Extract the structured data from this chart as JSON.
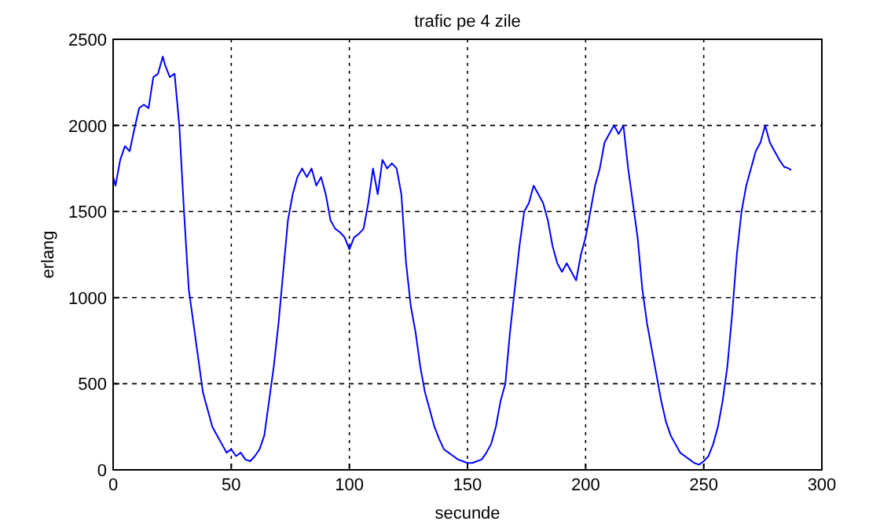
{
  "chart_data": {
    "type": "line",
    "title": "trafic pe 4 zile",
    "xlabel": "secunde",
    "ylabel": "erlang",
    "x": [
      0,
      1,
      3,
      5,
      7,
      9,
      11,
      13,
      15,
      17,
      19,
      21,
      22,
      24,
      26,
      28,
      30,
      32,
      34,
      36,
      38,
      40,
      42,
      44,
      46,
      48,
      50,
      52,
      54,
      56,
      58,
      60,
      62,
      64,
      66,
      68,
      70,
      72,
      74,
      76,
      78,
      80,
      82,
      84,
      86,
      88,
      90,
      92,
      94,
      96,
      98,
      100,
      102,
      104,
      106,
      108,
      110,
      112,
      114,
      116,
      118,
      120,
      122,
      124,
      126,
      128,
      130,
      132,
      134,
      136,
      138,
      140,
      142,
      144,
      146,
      148,
      150,
      152,
      154,
      156,
      158,
      160,
      162,
      164,
      166,
      168,
      170,
      172,
      174,
      176,
      178,
      180,
      182,
      184,
      186,
      188,
      190,
      192,
      194,
      196,
      198,
      200,
      202,
      204,
      206,
      208,
      210,
      212,
      214,
      216,
      218,
      220,
      222,
      224,
      226,
      228,
      230,
      232,
      234,
      236,
      238,
      240,
      242,
      244,
      246,
      248,
      250,
      252,
      254,
      256,
      258,
      260,
      262,
      264,
      266,
      268,
      270,
      272,
      274,
      276,
      278,
      280,
      282,
      284,
      286,
      287
    ],
    "series": [
      {
        "color": "#0000ff",
        "values": [
          1700,
          1650,
          1800,
          1880,
          1850,
          1980,
          2100,
          2120,
          2100,
          2280,
          2300,
          2400,
          2350,
          2280,
          2300,
          2000,
          1500,
          1050,
          850,
          650,
          450,
          350,
          250,
          200,
          150,
          100,
          120,
          80,
          100,
          60,
          50,
          80,
          120,
          200,
          400,
          600,
          850,
          1150,
          1450,
          1600,
          1700,
          1750,
          1700,
          1750,
          1650,
          1700,
          1600,
          1450,
          1400,
          1380,
          1350,
          1280,
          1350,
          1370,
          1400,
          1550,
          1750,
          1600,
          1800,
          1750,
          1780,
          1750,
          1600,
          1200,
          950,
          800,
          600,
          450,
          350,
          250,
          180,
          120,
          100,
          80,
          60,
          50,
          40,
          40,
          50,
          60,
          100,
          150,
          250,
          400,
          500,
          800,
          1050,
          1300,
          1500,
          1550,
          1650,
          1600,
          1550,
          1450,
          1300,
          1200,
          1150,
          1200,
          1150,
          1100,
          1250,
          1350,
          1500,
          1650,
          1750,
          1900,
          1950,
          2000,
          1950,
          2000,
          1750,
          1550,
          1350,
          1050,
          850,
          700,
          550,
          400,
          280,
          200,
          150,
          100,
          80,
          60,
          40,
          30,
          50,
          80,
          150,
          250,
          400,
          600,
          900,
          1250,
          1500,
          1650,
          1750,
          1850,
          1900,
          2000,
          1900,
          1850,
          1800,
          1760,
          1750,
          1740
        ]
      }
    ],
    "xlim": [
      0,
      300
    ],
    "xticks": [
      0,
      50,
      100,
      150,
      200,
      250,
      300
    ],
    "ylim": [
      0,
      2500
    ],
    "yticks": [
      0,
      500,
      1000,
      1500,
      2000,
      2500
    ],
    "grid": true,
    "line_style": "solid"
  }
}
